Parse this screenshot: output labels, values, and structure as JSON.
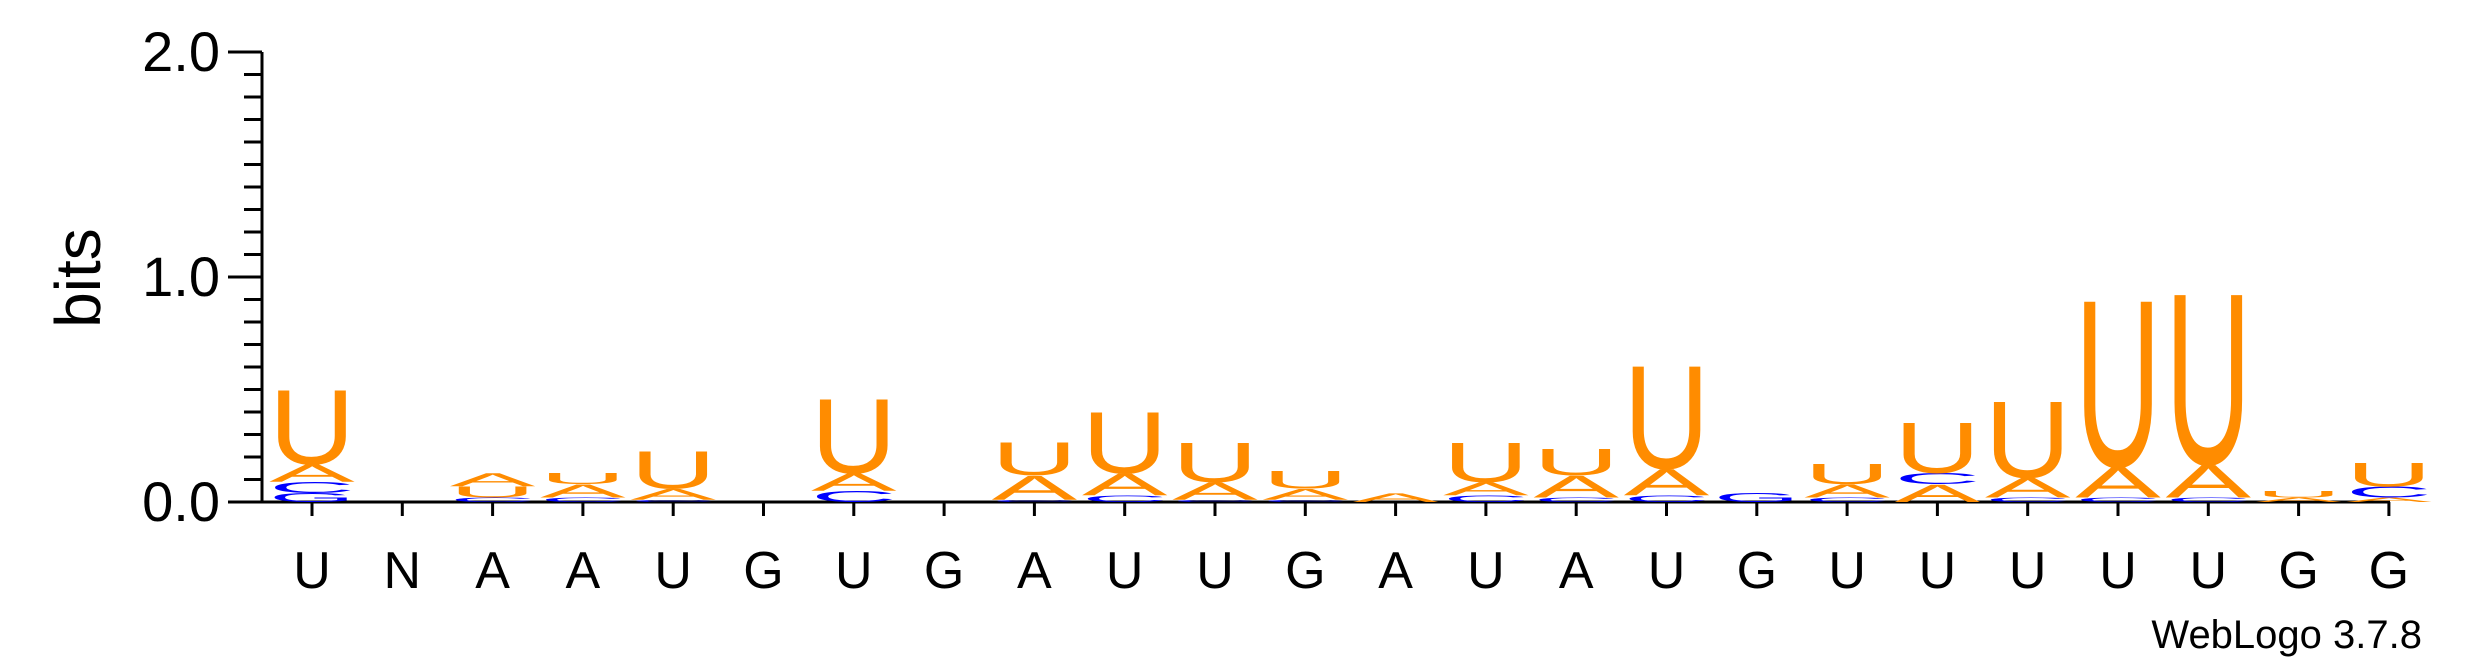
{
  "chart_data": {
    "type": "sequence-logo",
    "ylabel": "bits",
    "ylim": [
      0,
      2.0
    ],
    "yticks": [
      "0.0",
      "1.0",
      "2.0"
    ],
    "positions": [
      "U",
      "N",
      "A",
      "A",
      "U",
      "G",
      "U",
      "G",
      "A",
      "U",
      "U",
      "G",
      "A",
      "U",
      "A",
      "U",
      "G",
      "U",
      "U",
      "U",
      "U",
      "U",
      "G",
      "G"
    ],
    "colors": {
      "U": "#ff8c00",
      "A": "#ff8c00",
      "C": "#0000ff",
      "G": "#0000ff"
    },
    "stacks": [
      [
        {
          "l": "G",
          "h": 0.04
        },
        {
          "l": "C",
          "h": 0.05
        },
        {
          "l": "A",
          "h": 0.08
        },
        {
          "l": "U",
          "h": 0.34
        }
      ],
      [],
      [
        {
          "l": "C",
          "h": 0.02
        },
        {
          "l": "U",
          "h": 0.05
        },
        {
          "l": "A",
          "h": 0.06
        }
      ],
      [
        {
          "l": "C",
          "h": 0.02
        },
        {
          "l": "A",
          "h": 0.06
        },
        {
          "l": "U",
          "h": 0.05
        }
      ],
      [
        {
          "l": "C",
          "h": 0.01
        },
        {
          "l": "A",
          "h": 0.05
        },
        {
          "l": "U",
          "h": 0.17
        }
      ],
      [],
      [
        {
          "l": "C",
          "h": 0.05
        },
        {
          "l": "A",
          "h": 0.08
        },
        {
          "l": "U",
          "h": 0.34
        }
      ],
      [],
      [
        {
          "l": "C",
          "h": 0.01
        },
        {
          "l": "A",
          "h": 0.11
        },
        {
          "l": "U",
          "h": 0.15
        }
      ],
      [
        {
          "l": "C",
          "h": 0.03
        },
        {
          "l": "A",
          "h": 0.1
        },
        {
          "l": "U",
          "h": 0.28
        }
      ],
      [
        {
          "l": "C",
          "h": 0.01
        },
        {
          "l": "A",
          "h": 0.08
        },
        {
          "l": "U",
          "h": 0.18
        }
      ],
      [
        {
          "l": "C",
          "h": 0.01
        },
        {
          "l": "A",
          "h": 0.05
        },
        {
          "l": "U",
          "h": 0.08
        }
      ],
      [
        {
          "l": "A",
          "h": 0.04
        }
      ],
      [
        {
          "l": "C",
          "h": 0.03
        },
        {
          "l": "A",
          "h": 0.06
        },
        {
          "l": "U",
          "h": 0.18
        }
      ],
      [
        {
          "l": "C",
          "h": 0.02
        },
        {
          "l": "A",
          "h": 0.1
        },
        {
          "l": "U",
          "h": 0.12
        }
      ],
      [
        {
          "l": "C",
          "h": 0.03
        },
        {
          "l": "A",
          "h": 0.12
        },
        {
          "l": "U",
          "h": 0.47
        }
      ],
      [
        {
          "l": "G",
          "h": 0.04
        }
      ],
      [
        {
          "l": "C",
          "h": 0.02
        },
        {
          "l": "A",
          "h": 0.06
        },
        {
          "l": "U",
          "h": 0.09
        }
      ],
      [
        {
          "l": "A",
          "h": 0.08
        },
        {
          "l": "C",
          "h": 0.05
        },
        {
          "l": "U",
          "h": 0.23
        }
      ],
      [
        {
          "l": "C",
          "h": 0.02
        },
        {
          "l": "A",
          "h": 0.09
        },
        {
          "l": "U",
          "h": 0.35
        }
      ],
      [
        {
          "l": "C",
          "h": 0.02
        },
        {
          "l": "A",
          "h": 0.14
        },
        {
          "l": "U",
          "h": 0.76
        }
      ],
      [
        {
          "l": "C",
          "h": 0.02
        },
        {
          "l": "A",
          "h": 0.15
        },
        {
          "l": "U",
          "h": 0.78
        }
      ],
      [
        {
          "l": "A",
          "h": 0.02
        },
        {
          "l": "U",
          "h": 0.03
        }
      ],
      [
        {
          "l": "A",
          "h": 0.02
        },
        {
          "l": "C",
          "h": 0.05
        },
        {
          "l": "U",
          "h": 0.11
        }
      ]
    ]
  },
  "credit": "WebLogo 3.7.8"
}
